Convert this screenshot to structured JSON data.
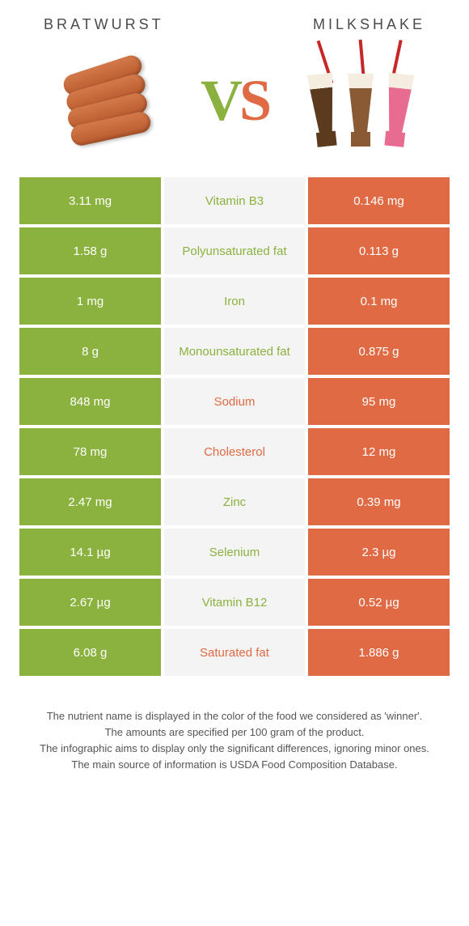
{
  "header": {
    "left_title": "BRATWURST",
    "right_title": "MILKSHAKE"
  },
  "vs": {
    "v": "V",
    "s": "S"
  },
  "colors": {
    "left_winner": "#8bb23f",
    "right_winner": "#e06a44",
    "mid_bg": "#f4f4f4",
    "text_white": "#ffffff"
  },
  "rows": [
    {
      "nutrient": "Vitamin B3",
      "left": "3.11 mg",
      "right": "0.146 mg",
      "winner": "left"
    },
    {
      "nutrient": "Polyunsaturated fat",
      "left": "1.58 g",
      "right": "0.113 g",
      "winner": "left"
    },
    {
      "nutrient": "Iron",
      "left": "1 mg",
      "right": "0.1 mg",
      "winner": "left"
    },
    {
      "nutrient": "Monounsaturated fat",
      "left": "8 g",
      "right": "0.875 g",
      "winner": "left"
    },
    {
      "nutrient": "Sodium",
      "left": "848 mg",
      "right": "95 mg",
      "winner": "right"
    },
    {
      "nutrient": "Cholesterol",
      "left": "78 mg",
      "right": "12 mg",
      "winner": "right"
    },
    {
      "nutrient": "Zinc",
      "left": "2.47 mg",
      "right": "0.39 mg",
      "winner": "left"
    },
    {
      "nutrient": "Selenium",
      "left": "14.1 µg",
      "right": "2.3 µg",
      "winner": "left"
    },
    {
      "nutrient": "Vitamin B12",
      "left": "2.67 µg",
      "right": "0.52 µg",
      "winner": "left"
    },
    {
      "nutrient": "Saturated fat",
      "left": "6.08 g",
      "right": "1.886 g",
      "winner": "right"
    }
  ],
  "footer": {
    "line1": "The nutrient name is displayed in the color of the food we considered as 'winner'.",
    "line2": "The amounts are specified per 100 gram of the product.",
    "line3": "The infographic aims to display only the significant differences, ignoring minor ones.",
    "line4": "The main source of information is USDA Food Composition Database."
  }
}
